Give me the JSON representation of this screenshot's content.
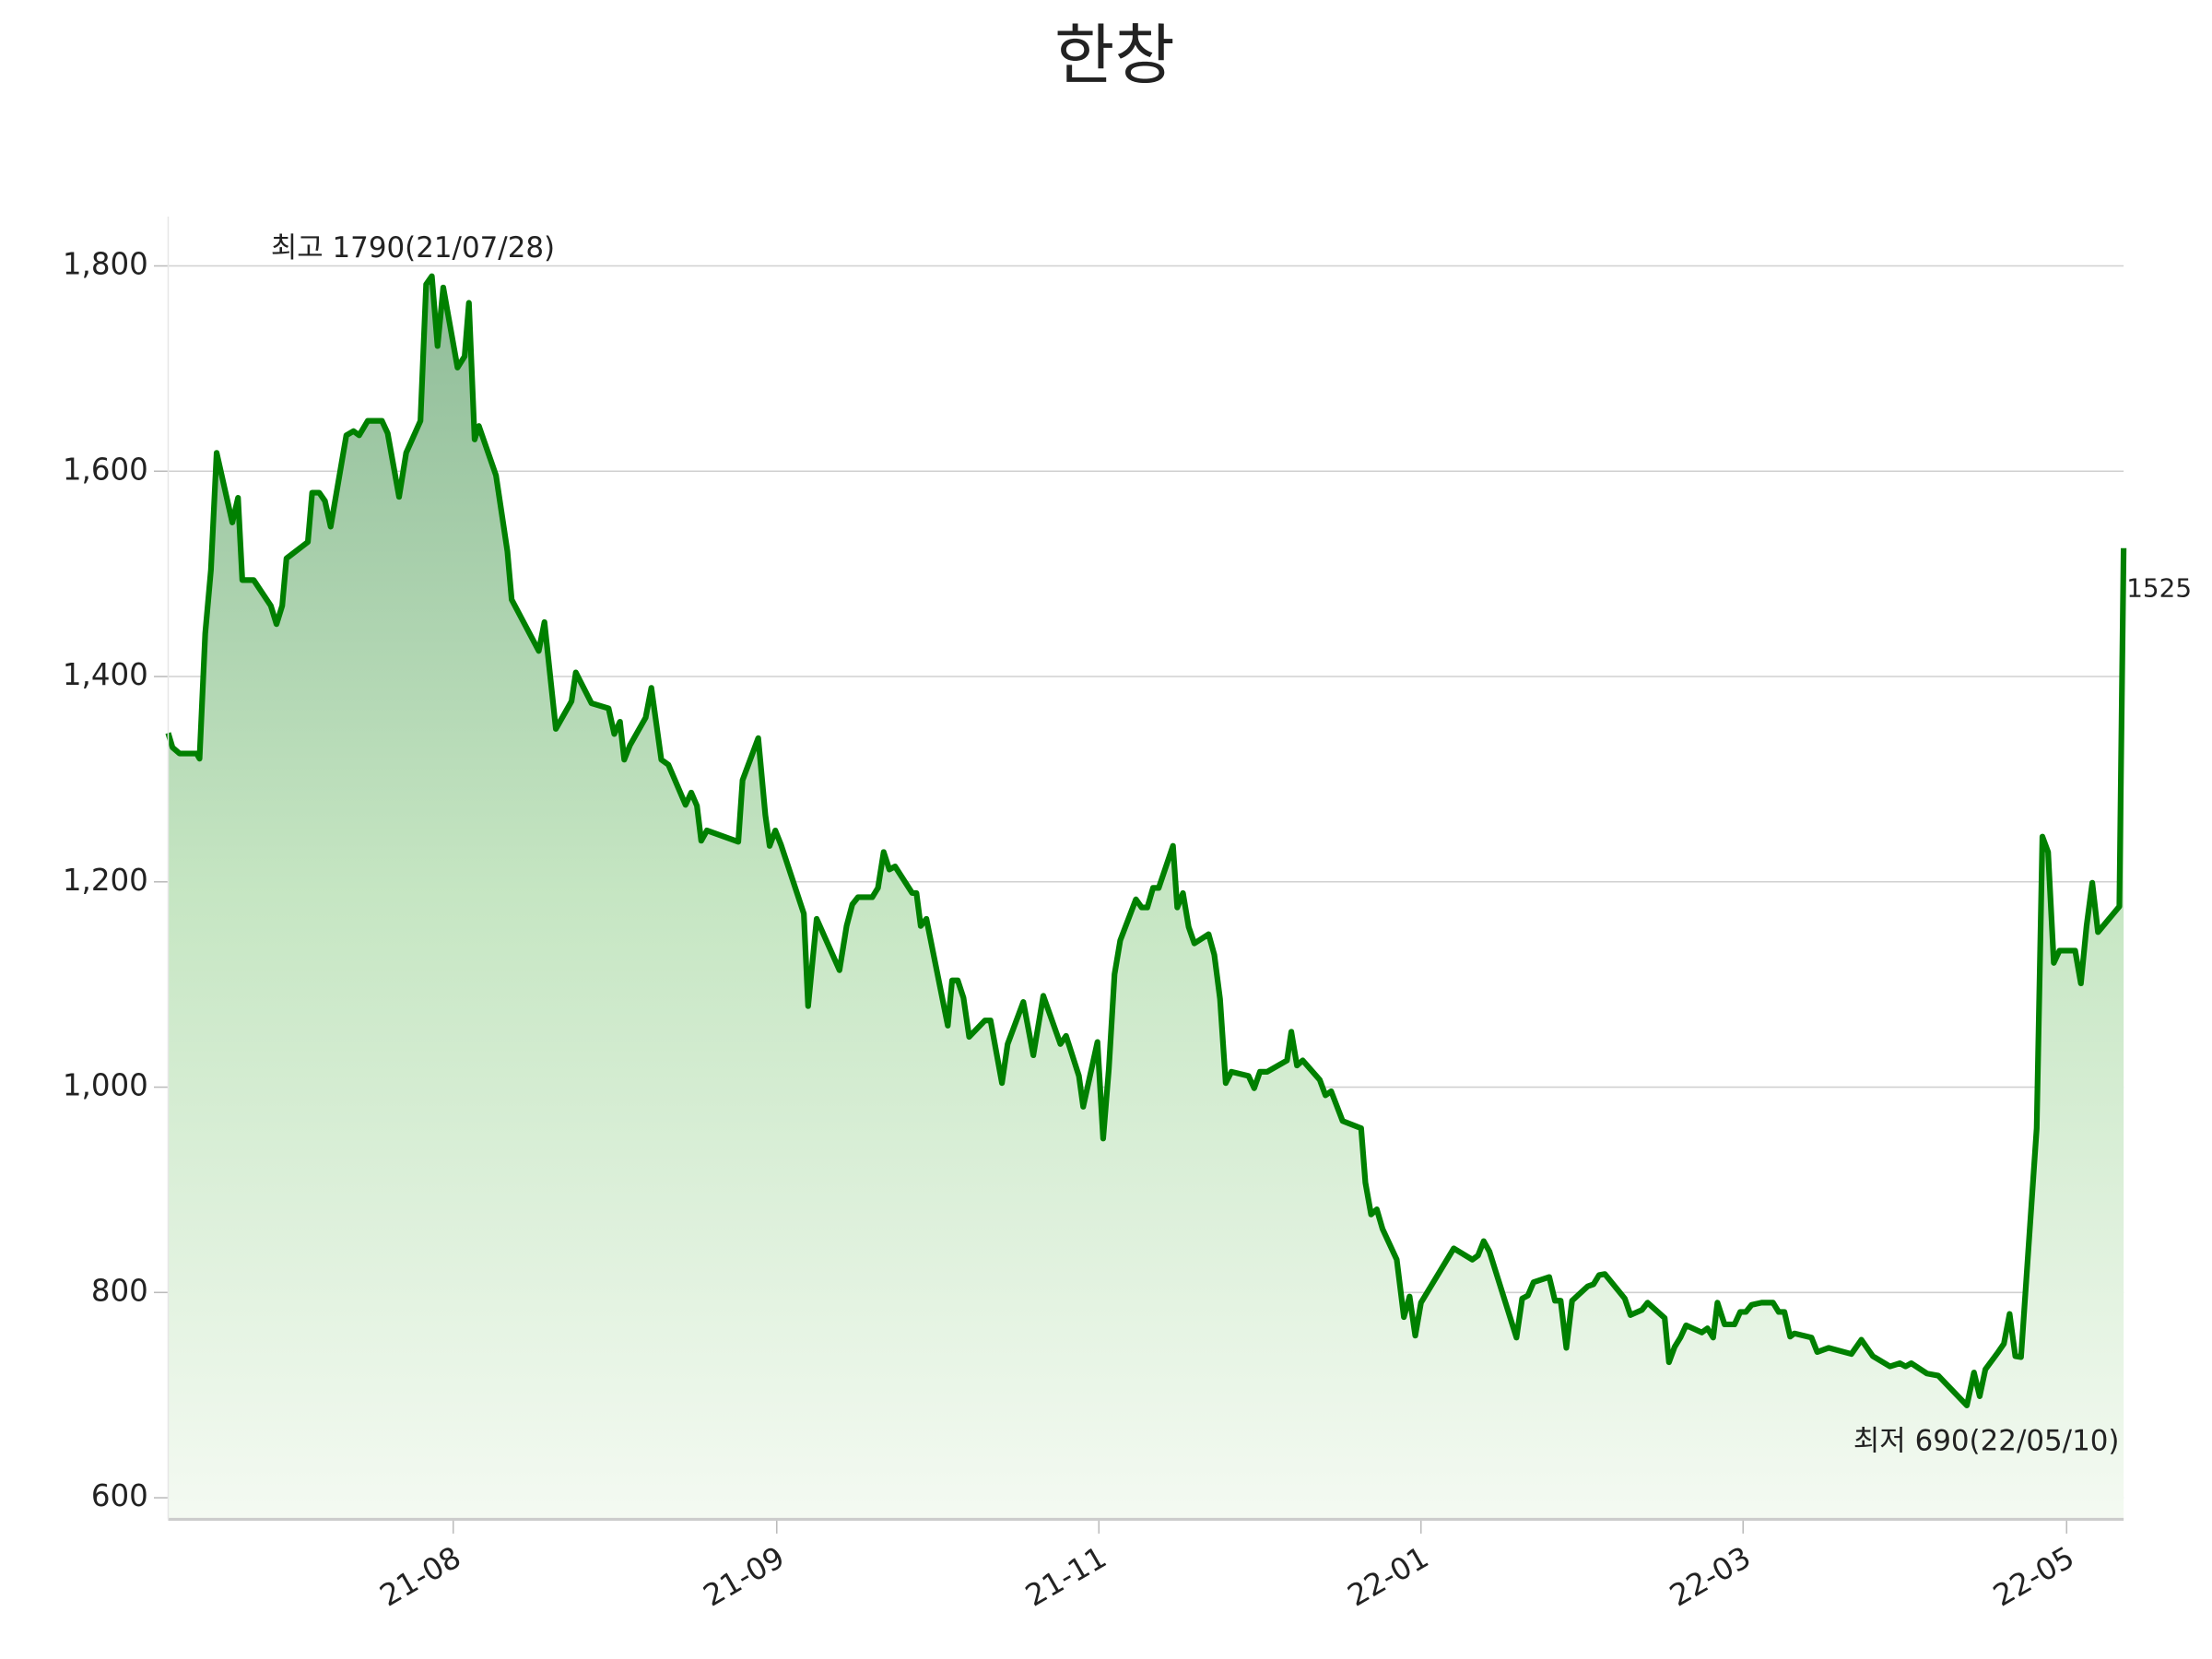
{
  "chart_data": {
    "type": "line",
    "title": "한창",
    "xlim": [
      0,
      1372
    ],
    "ylim": [
      579,
      1848
    ],
    "xticks": [
      {
        "value": 200,
        "label": "21-08"
      },
      {
        "value": 427,
        "label": "21-09"
      },
      {
        "value": 653,
        "label": "21-11"
      },
      {
        "value": 879,
        "label": "22-01"
      },
      {
        "value": 1105,
        "label": "22-03"
      },
      {
        "value": 1332,
        "label": "22-05"
      }
    ],
    "yticks": [
      {
        "value": 600,
        "label": "600"
      },
      {
        "value": 800,
        "label": "800"
      },
      {
        "value": 1000,
        "label": "1,000"
      },
      {
        "value": 1200,
        "label": "1,200"
      },
      {
        "value": 1400,
        "label": "1,400"
      },
      {
        "value": 1600,
        "label": "1,600"
      },
      {
        "value": 1800,
        "label": "1,800"
      }
    ],
    "grid": true,
    "annotations": [
      {
        "text": "최고 1790(21/07/28)",
        "color": "#ff0000"
      },
      {
        "text": "최저 690(22/05/10)",
        "color": "#0000ff"
      }
    ],
    "series": [
      {
        "color": "#008000",
        "x": [
          0,
          3,
          8,
          20,
          22,
          26,
          30,
          34,
          45,
          49,
          52,
          60,
          72,
          76,
          80,
          83,
          98,
          101,
          106,
          110,
          114,
          125,
          130,
          134,
          140,
          150,
          154,
          162,
          167,
          177,
          181,
          185,
          189,
          193,
          203,
          208,
          211,
          215,
          218,
          230,
          238,
          241,
          260,
          264,
          272,
          283,
          286,
          297,
          309,
          313,
          317,
          320,
          324,
          335,
          339,
          346,
          351,
          363,
          367,
          371,
          374,
          378,
          400,
          403,
          414,
          419,
          422,
          426,
          430,
          446,
          449,
          455,
          471,
          476,
          480,
          484,
          494,
          498,
          502,
          506,
          510,
          522,
          525,
          528,
          532,
          547,
          550,
          554,
          558,
          562,
          573,
          577,
          585,
          589,
          600,
          607,
          614,
          626,
          630,
          639,
          642,
          652,
          656,
          660,
          664,
          668,
          679,
          683,
          687,
          691,
          695,
          705,
          708,
          712,
          716,
          720,
          730,
          734,
          738,
          742,
          746,
          758,
          762,
          766,
          771,
          785,
          788,
          792,
          796,
          808,
          812,
          816,
          824,
          837,
          840,
          844,
          848,
          852,
          862,
          867,
          871,
          875,
          879,
          902,
          915,
          919,
          923,
          927,
          946,
          950,
          954,
          958,
          969,
          973,
          977,
          981,
          985,
          996,
          1000,
          1004,
          1008,
          1022,
          1026,
          1034,
          1038,
          1050,
          1053,
          1057,
          1061,
          1065,
          1076,
          1080,
          1084,
          1087,
          1092,
          1099,
          1103,
          1107,
          1111,
          1118,
          1126,
          1130,
          1134,
          1138,
          1141,
          1153,
          1157,
          1165,
          1181,
          1188,
          1196,
          1208,
          1215,
          1219,
          1223,
          1234,
          1242,
          1262,
          1267,
          1271,
          1275,
          1284,
          1288,
          1292,
          1296,
          1300,
          1311,
          1315,
          1319,
          1323,
          1327,
          1338,
          1342,
          1346,
          1350,
          1354,
          1369,
          1372
        ],
        "values": [
          1345,
          1331,
          1325,
          1325,
          1320,
          1442,
          1504,
          1618,
          1550,
          1574,
          1494,
          1494,
          1469,
          1451,
          1469,
          1515,
          1531,
          1579,
          1579,
          1571,
          1546,
          1635,
          1639,
          1635,
          1649,
          1649,
          1637,
          1575,
          1618,
          1649,
          1782,
          1790,
          1722,
          1779,
          1701,
          1712,
          1764,
          1631,
          1644,
          1596,
          1522,
          1475,
          1425,
          1453,
          1349,
          1376,
          1404,
          1374,
          1369,
          1344,
          1356,
          1319,
          1333,
          1360,
          1389,
          1319,
          1314,
          1275,
          1287,
          1274,
          1240,
          1250,
          1239,
          1299,
          1340,
          1265,
          1235,
          1250,
          1236,
          1169,
          1079,
          1164,
          1114,
          1157,
          1178,
          1185,
          1185,
          1194,
          1229,
          1212,
          1215,
          1189,
          1189,
          1157,
          1164,
          1060,
          1104,
          1104,
          1087,
          1049,
          1065,
          1065,
          1004,
          1042,
          1083,
          1031,
          1089,
          1042,
          1050,
          1011,
          981,
          1044,
          950,
          1018,
          1110,
          1143,
          1183,
          1175,
          1175,
          1194,
          1194,
          1235,
          1175,
          1189,
          1156,
          1140,
          1149,
          1129,
          1086,
          1004,
          1015,
          1011,
          999,
          1015,
          1015,
          1026,
          1054,
          1021,
          1026,
          1007,
          992,
          996,
          967,
          960,
          907,
          876,
          881,
          862,
          832,
          776,
          796,
          758,
          790,
          843,
          832,
          836,
          850,
          840,
          756,
          794,
          797,
          810,
          815,
          792,
          792,
          746,
          792,
          806,
          808,
          817,
          818,
          794,
          778,
          783,
          790,
          775,
          732,
          747,
          756,
          768,
          761,
          765,
          756,
          790,
          769,
          769,
          781,
          781,
          788,
          790,
          790,
          781,
          781,
          757,
          760,
          756,
          742,
          746,
          740,
          754,
          738,
          728,
          731,
          728,
          731,
          721,
          719,
          690,
          722,
          699,
          725,
          742,
          750,
          779,
          738,
          737,
          960,
          1244,
          1229,
          1121,
          1133,
          1133,
          1101,
          1157,
          1199,
          1151,
          1176,
          1525
        ]
      }
    ]
  }
}
